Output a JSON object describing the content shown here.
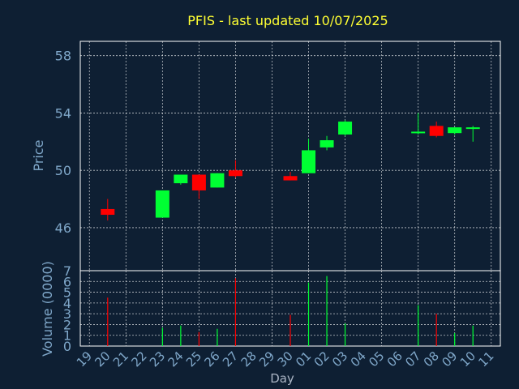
{
  "chart_data": {
    "type": "candlestick",
    "title": "PFIS - last updated 10/07/2025",
    "xlabel": "Day",
    "price_panel": {
      "ylabel": "Price",
      "ylim": [
        43,
        59
      ],
      "yticks": [
        46,
        50,
        54,
        58
      ],
      "grid": true
    },
    "volume_panel": {
      "ylabel": "Volume (0000)",
      "ylim": [
        0,
        7
      ],
      "yticks": [
        0,
        1,
        2,
        3,
        4,
        5,
        6,
        7
      ],
      "grid": true
    },
    "x_tick_labels": [
      "19",
      "20",
      "21",
      "22",
      "23",
      "24",
      "25",
      "26",
      "27",
      "28",
      "29",
      "30",
      "01",
      "02",
      "03",
      "04",
      "05",
      "06",
      "07",
      "08",
      "09",
      "10",
      "11"
    ],
    "candles": [
      {
        "day": "20",
        "open": 47.3,
        "high": 48.0,
        "low": 46.5,
        "close": 46.9,
        "volume": 4.5
      },
      {
        "day": "23",
        "open": 46.7,
        "high": 48.6,
        "low": 46.7,
        "close": 48.6,
        "volume": 1.7
      },
      {
        "day": "24",
        "open": 49.1,
        "high": 49.7,
        "low": 49.0,
        "close": 49.7,
        "volume": 1.9
      },
      {
        "day": "25",
        "open": 49.7,
        "high": 49.7,
        "low": 48.0,
        "close": 48.6,
        "volume": 1.3
      },
      {
        "day": "26",
        "open": 48.8,
        "high": 49.8,
        "low": 48.8,
        "close": 49.8,
        "volume": 1.6
      },
      {
        "day": "27",
        "open": 50.0,
        "high": 50.7,
        "low": 49.5,
        "close": 49.6,
        "volume": 6.3
      },
      {
        "day": "30",
        "open": 49.6,
        "high": 49.9,
        "low": 49.3,
        "close": 49.3,
        "volume": 2.9
      },
      {
        "day": "01",
        "open": 49.8,
        "high": 52.2,
        "low": 49.8,
        "close": 51.4,
        "volume": 5.9
      },
      {
        "day": "02",
        "open": 51.6,
        "high": 52.4,
        "low": 51.4,
        "close": 52.1,
        "volume": 6.5
      },
      {
        "day": "03",
        "open": 52.5,
        "high": 53.5,
        "low": 52.4,
        "close": 53.4,
        "volume": 2.1
      },
      {
        "day": "07",
        "open": 52.6,
        "high": 54.0,
        "low": 52.5,
        "close": 52.7,
        "volume": 3.8
      },
      {
        "day": "08",
        "open": 53.1,
        "high": 53.4,
        "low": 52.3,
        "close": 52.4,
        "volume": 3.0
      },
      {
        "day": "09",
        "open": 52.6,
        "high": 53.0,
        "low": 52.5,
        "close": 53.0,
        "volume": 1.2
      },
      {
        "day": "10",
        "open": 53.0,
        "high": 53.1,
        "low": 52.0,
        "close": 53.0,
        "volume": 1.9
      }
    ]
  },
  "colors": {
    "background": "#0e1f33",
    "plot_background": "#0e1f33",
    "axis_text": "#7fa7c9",
    "title": "#ffff33",
    "grid": "#ffffff",
    "frame": "#ffffff",
    "up": "#00ff33",
    "down": "#ff0000"
  }
}
